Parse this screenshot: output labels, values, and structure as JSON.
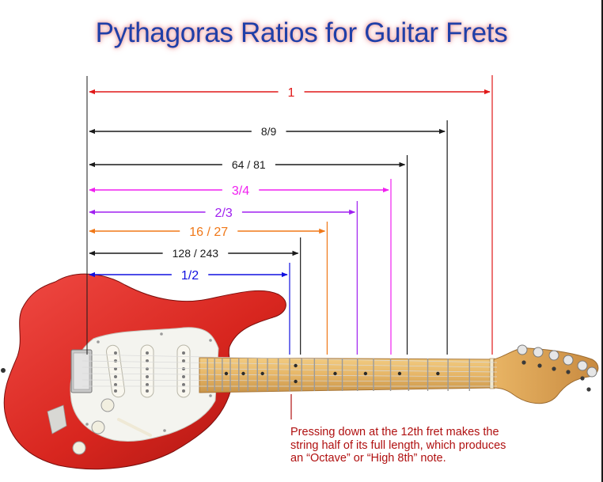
{
  "title": "Pythagoras Ratios for Guitar Frets",
  "ratios": [
    {
      "label": "1",
      "color": "#e01818",
      "ratio": 1
    },
    {
      "label": "8/9",
      "color": "#1a1a1a",
      "ratio": 0.8889
    },
    {
      "label": "64 / 81",
      "color": "#1a1a1a",
      "ratio": 0.7901
    },
    {
      "label": "3/4",
      "color": "#f020f0",
      "ratio": 0.75
    },
    {
      "label": "2/3",
      "color": "#a020f0",
      "ratio": 0.6667
    },
    {
      "label": "16 / 27",
      "color": "#f07818",
      "ratio": 0.5926
    },
    {
      "label": "128 / 243",
      "color": "#1a1a1a",
      "ratio": 0.5267
    },
    {
      "label": "1/2",
      "color": "#1010e0",
      "ratio": 0.5
    }
  ],
  "note": {
    "line1": "Pressing down at the 12th fret makes the",
    "line2": "string half of its full length, which produces",
    "line3": "an “Octave” or “High 8th” note.",
    "color": "#b01010"
  },
  "guitar": {
    "body_color": "#e0302e",
    "pickguard_color": "#f4f4f0",
    "neck_color": "#e8b868"
  }
}
